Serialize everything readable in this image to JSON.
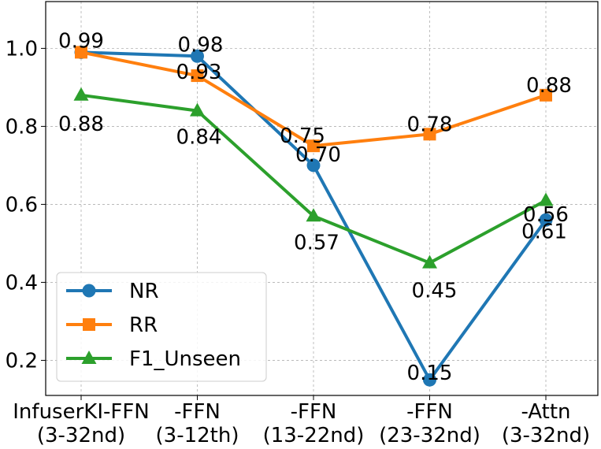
{
  "chart_data": {
    "type": "line",
    "title": "",
    "xlabel": "",
    "ylabel": "",
    "categories": [
      [
        "InfuserKI-FFN",
        "(3-32nd)"
      ],
      [
        "-FFN",
        "(3-12th)"
      ],
      [
        "-FFN",
        "(13-22nd)"
      ],
      [
        "-FFN",
        "(23-32nd)"
      ],
      [
        "-Attn",
        "(3-32nd)"
      ]
    ],
    "ylim": [
      0.11,
      1.12
    ],
    "yticks": [
      0.2,
      0.4,
      0.6,
      0.8,
      1.0
    ],
    "ytick_labels": [
      "0.2",
      "0.4",
      "0.6",
      "0.8",
      "1.0"
    ],
    "grid": true,
    "legend_position": "lower-left",
    "series": [
      {
        "name": "NR",
        "color": "#1f77b4",
        "marker": "circle",
        "values": [
          0.99,
          0.98,
          0.7,
          0.15,
          0.56
        ],
        "labels": [
          "0.99",
          "0.98",
          "0.70",
          "0.15",
          "0.56"
        ]
      },
      {
        "name": "RR",
        "color": "#ff7f0e",
        "marker": "square",
        "values": [
          0.99,
          0.93,
          0.75,
          0.78,
          0.88
        ],
        "labels": [
          "",
          "0.93",
          "0.75",
          "0.78",
          "0.88"
        ]
      },
      {
        "name": "F1_Unseen",
        "color": "#2ca02c",
        "marker": "triangle",
        "values": [
          0.88,
          0.84,
          0.57,
          0.45,
          0.61
        ],
        "labels": [
          "0.88",
          "0.84",
          "0.57",
          "0.45",
          "0.61"
        ]
      }
    ]
  }
}
